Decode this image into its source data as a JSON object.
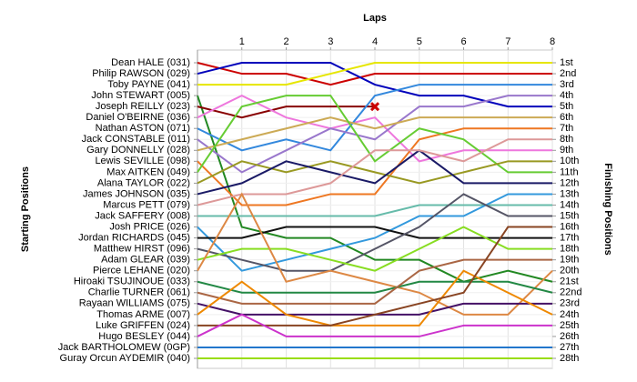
{
  "chart_data": {
    "type": "line",
    "title": "Laps",
    "ylabel": "Starting Positions",
    "y2label": "Finishing Positions",
    "x": [
      0,
      1,
      2,
      3,
      4,
      5,
      6,
      7,
      8
    ],
    "xlim": [
      0,
      8
    ],
    "xticks": [
      1,
      2,
      3,
      4,
      5,
      6,
      7,
      8
    ],
    "ylim": [
      1,
      28
    ],
    "y2lim": [
      1,
      28
    ],
    "y2ticks": [
      {
        "value": 1,
        "label": "1st"
      },
      {
        "value": 2,
        "label": "2nd"
      },
      {
        "value": 3,
        "label": "3rd"
      },
      {
        "value": 4,
        "label": "4th"
      },
      {
        "value": 5,
        "label": "5th"
      },
      {
        "value": 6,
        "label": "6th"
      },
      {
        "value": 7,
        "label": "7th"
      },
      {
        "value": 8,
        "label": "8th"
      },
      {
        "value": 9,
        "label": "9th"
      },
      {
        "value": 10,
        "label": "10th"
      },
      {
        "value": 11,
        "label": "11th"
      },
      {
        "value": 12,
        "label": "12th"
      },
      {
        "value": 13,
        "label": "13th"
      },
      {
        "value": 14,
        "label": "14th"
      },
      {
        "value": 15,
        "label": "15th"
      },
      {
        "value": 16,
        "label": "16th"
      },
      {
        "value": 17,
        "label": "17th"
      },
      {
        "value": 18,
        "label": "18th"
      },
      {
        "value": 19,
        "label": "19th"
      },
      {
        "value": 20,
        "label": "20th"
      },
      {
        "value": 21,
        "label": "21st"
      },
      {
        "value": 22,
        "label": "22nd"
      },
      {
        "value": 23,
        "label": "23rd"
      },
      {
        "value": 24,
        "label": "24th"
      },
      {
        "value": 25,
        "label": "25th"
      },
      {
        "value": 26,
        "label": "26th"
      },
      {
        "value": 27,
        "label": "27th"
      },
      {
        "value": 28,
        "label": "28th"
      }
    ],
    "inverted": true,
    "grid": true,
    "series": [
      {
        "name": "Dean HALE (031)",
        "color": "#cc0000",
        "values": [
          1,
          2,
          2,
          3,
          2,
          2,
          2,
          2,
          2
        ]
      },
      {
        "name": "Philip RAWSON (029)",
        "color": "#0000bb",
        "values": [
          2,
          1,
          1,
          1,
          3,
          4,
          4,
          5,
          5
        ]
      },
      {
        "name": "Toby PAYNE (041)",
        "color": "#e6e600",
        "values": [
          3,
          3,
          3,
          2,
          1,
          1,
          1,
          1,
          1
        ]
      },
      {
        "name": "John STEWART (005)",
        "color": "#228822",
        "values": [
          4,
          16,
          17,
          17,
          19,
          19,
          21,
          20,
          21
        ]
      },
      {
        "name": "Joseph REILLY (023)",
        "color": "#880000",
        "retired": true,
        "values": [
          5,
          6,
          5,
          5,
          5,
          null,
          null,
          null,
          null
        ]
      },
      {
        "name": "Daniel O'BEIRNE (036)",
        "color": "#ee77dd",
        "values": [
          6,
          4,
          6,
          7,
          6,
          10,
          9,
          9,
          9
        ]
      },
      {
        "name": "Nathan ASTON (071)",
        "color": "#3388dd",
        "values": [
          7,
          9,
          8,
          9,
          4,
          3,
          3,
          3,
          3
        ]
      },
      {
        "name": "Jack CONSTABLE (011)",
        "color": "#9977cc",
        "values": [
          8,
          11,
          9,
          7,
          8,
          5,
          5,
          4,
          4
        ]
      },
      {
        "name": "Gary DONNELLY (028)",
        "color": "#ccaa55",
        "values": [
          9,
          8,
          7,
          6,
          7,
          6,
          6,
          6,
          6
        ]
      },
      {
        "name": "Lewis SEVILLE (098)",
        "color": "#ee7722",
        "values": [
          10,
          14,
          14,
          13,
          13,
          8,
          7,
          7,
          7
        ]
      },
      {
        "name": "Max AITKEN (049)",
        "color": "#66cc33",
        "values": [
          11,
          5,
          4,
          4,
          10,
          7,
          8,
          11,
          11
        ]
      },
      {
        "name": "Alana TAYLOR (022)",
        "color": "#999922",
        "values": [
          12,
          10,
          11,
          10,
          11,
          12,
          11,
          10,
          10
        ]
      },
      {
        "name": "James JOHNSON (035)",
        "color": "#1a1a66",
        "values": [
          13,
          12,
          10,
          11,
          12,
          9,
          12,
          12,
          12
        ]
      },
      {
        "name": "Marcus PETT (079)",
        "color": "#dd9999",
        "values": [
          14,
          13,
          13,
          12,
          9,
          9,
          10,
          8,
          8
        ]
      },
      {
        "name": "Jack SAFFERY (008)",
        "color": "#66bbaa",
        "values": [
          15,
          15,
          15,
          15,
          15,
          14,
          14,
          14,
          14
        ]
      },
      {
        "name": "Josh PRICE (026)",
        "color": "#3399dd",
        "values": [
          16,
          20,
          19,
          18,
          17,
          15,
          15,
          13,
          13
        ]
      },
      {
        "name": "Jordan RICHARDS (045)",
        "color": "#111111",
        "values": [
          17,
          17,
          16,
          16,
          16,
          17,
          17,
          17,
          17
        ]
      },
      {
        "name": "Matthew HIRST (096)",
        "color": "#555566",
        "values": [
          18,
          19,
          20,
          20,
          18,
          16,
          13,
          15,
          15
        ]
      },
      {
        "name": "Adam GLEAR (039)",
        "color": "#88dd22",
        "values": [
          19,
          18,
          18,
          19,
          20,
          18,
          16,
          18,
          18
        ]
      },
      {
        "name": "Pierce LEHANE (020)",
        "color": "#dd8844",
        "values": [
          20,
          13,
          21,
          20,
          21,
          22,
          24,
          24,
          20
        ]
      },
      {
        "name": "Hiroaki TSUJINOUE (033)",
        "color": "#228844",
        "values": [
          21,
          22,
          22,
          22,
          22,
          21,
          21,
          21,
          22
        ]
      },
      {
        "name": "Charlie TURNER (061)",
        "color": "#aa6644",
        "values": [
          22,
          23,
          23,
          23,
          23,
          20,
          19,
          19,
          19
        ]
      },
      {
        "name": "Rayaan WILLIAMS (075)",
        "color": "#441166",
        "values": [
          23,
          24,
          24,
          24,
          24,
          24,
          23,
          23,
          23
        ]
      },
      {
        "name": "Thomas ARME (007)",
        "color": "#ee8800",
        "values": [
          24,
          21,
          24,
          25,
          25,
          25,
          20,
          22,
          24
        ]
      },
      {
        "name": "Luke GRIFFEN (024)",
        "color": "#884422",
        "values": [
          25,
          25,
          25,
          25,
          24,
          23,
          22,
          16,
          16
        ]
      },
      {
        "name": "Hugo BESLEY (044)",
        "color": "#cc33cc",
        "values": [
          26,
          24,
          26,
          26,
          26,
          26,
          25,
          25,
          25
        ]
      },
      {
        "name": "Jack BARTHOLOMEW (0GP)",
        "color": "#2277cc",
        "values": [
          27,
          27,
          27,
          27,
          27,
          27,
          27,
          27,
          27
        ]
      },
      {
        "name": "Guray Orcun AYDEMIR (040)",
        "color": "#99dd11",
        "values": [
          28,
          28,
          28,
          28,
          28,
          28,
          28,
          28,
          28
        ]
      }
    ]
  }
}
